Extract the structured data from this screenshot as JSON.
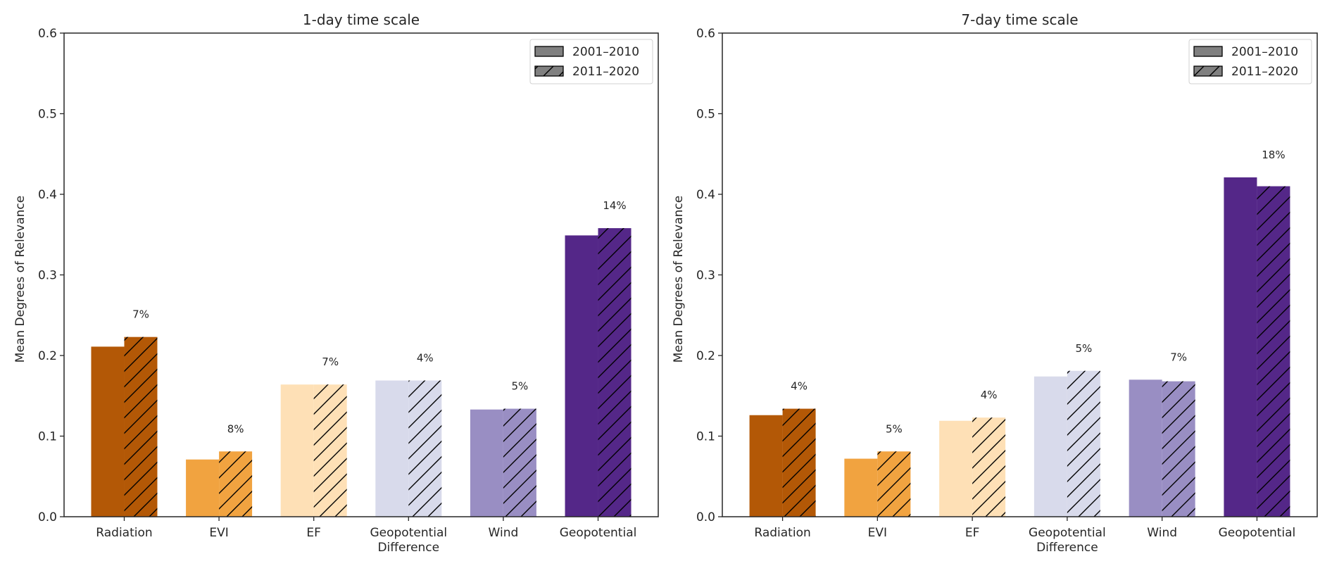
{
  "chart_data": [
    {
      "type": "bar",
      "title": "1-day time scale",
      "xlabel": "",
      "ylabel": "Mean Degrees of Relevance",
      "ylim": [
        0,
        0.6
      ],
      "yticks": [
        "0.0",
        "0.1",
        "0.2",
        "0.3",
        "0.4",
        "0.5",
        "0.6"
      ],
      "grid": false,
      "legend_position": "top-right",
      "categories": [
        "Radiation",
        "EVI",
        "EF",
        "Geopotential\nDifference",
        "Wind",
        "Geopotential"
      ],
      "category_colors": [
        "#b35806",
        "#f1a340",
        "#fee0b6",
        "#d8daeb",
        "#998ec3",
        "#542788"
      ],
      "series": [
        {
          "name": "2001–2010",
          "hatch": "none",
          "values": [
            0.211,
            0.071,
            0.164,
            0.169,
            0.133,
            0.349
          ]
        },
        {
          "name": "2011–2020",
          "hatch": "diagonal",
          "values": [
            0.223,
            0.081,
            0.164,
            0.169,
            0.134,
            0.358
          ]
        }
      ],
      "annotations": [
        "7%",
        "8%",
        "7%",
        "4%",
        "5%",
        "14%"
      ]
    },
    {
      "type": "bar",
      "title": "7-day time scale",
      "xlabel": "",
      "ylabel": "Mean Degrees of Relevance",
      "ylim": [
        0,
        0.6
      ],
      "yticks": [
        "0.0",
        "0.1",
        "0.2",
        "0.3",
        "0.4",
        "0.5",
        "0.6"
      ],
      "grid": false,
      "legend_position": "top-right",
      "categories": [
        "Radiation",
        "EVI",
        "EF",
        "Geopotential\nDifference",
        "Wind",
        "Geopotential"
      ],
      "category_colors": [
        "#b35806",
        "#f1a340",
        "#fee0b6",
        "#d8daeb",
        "#998ec3",
        "#542788"
      ],
      "series": [
        {
          "name": "2001–2010",
          "hatch": "none",
          "values": [
            0.126,
            0.072,
            0.119,
            0.174,
            0.17,
            0.421
          ]
        },
        {
          "name": "2011–2020",
          "hatch": "diagonal",
          "values": [
            0.134,
            0.081,
            0.123,
            0.181,
            0.168,
            0.41
          ]
        }
      ],
      "annotations": [
        "4%",
        "5%",
        "4%",
        "5%",
        "7%",
        "18%"
      ]
    }
  ],
  "legend": {
    "patch_color": "#808080",
    "items": [
      "2001–2010",
      "2011–2020"
    ]
  }
}
